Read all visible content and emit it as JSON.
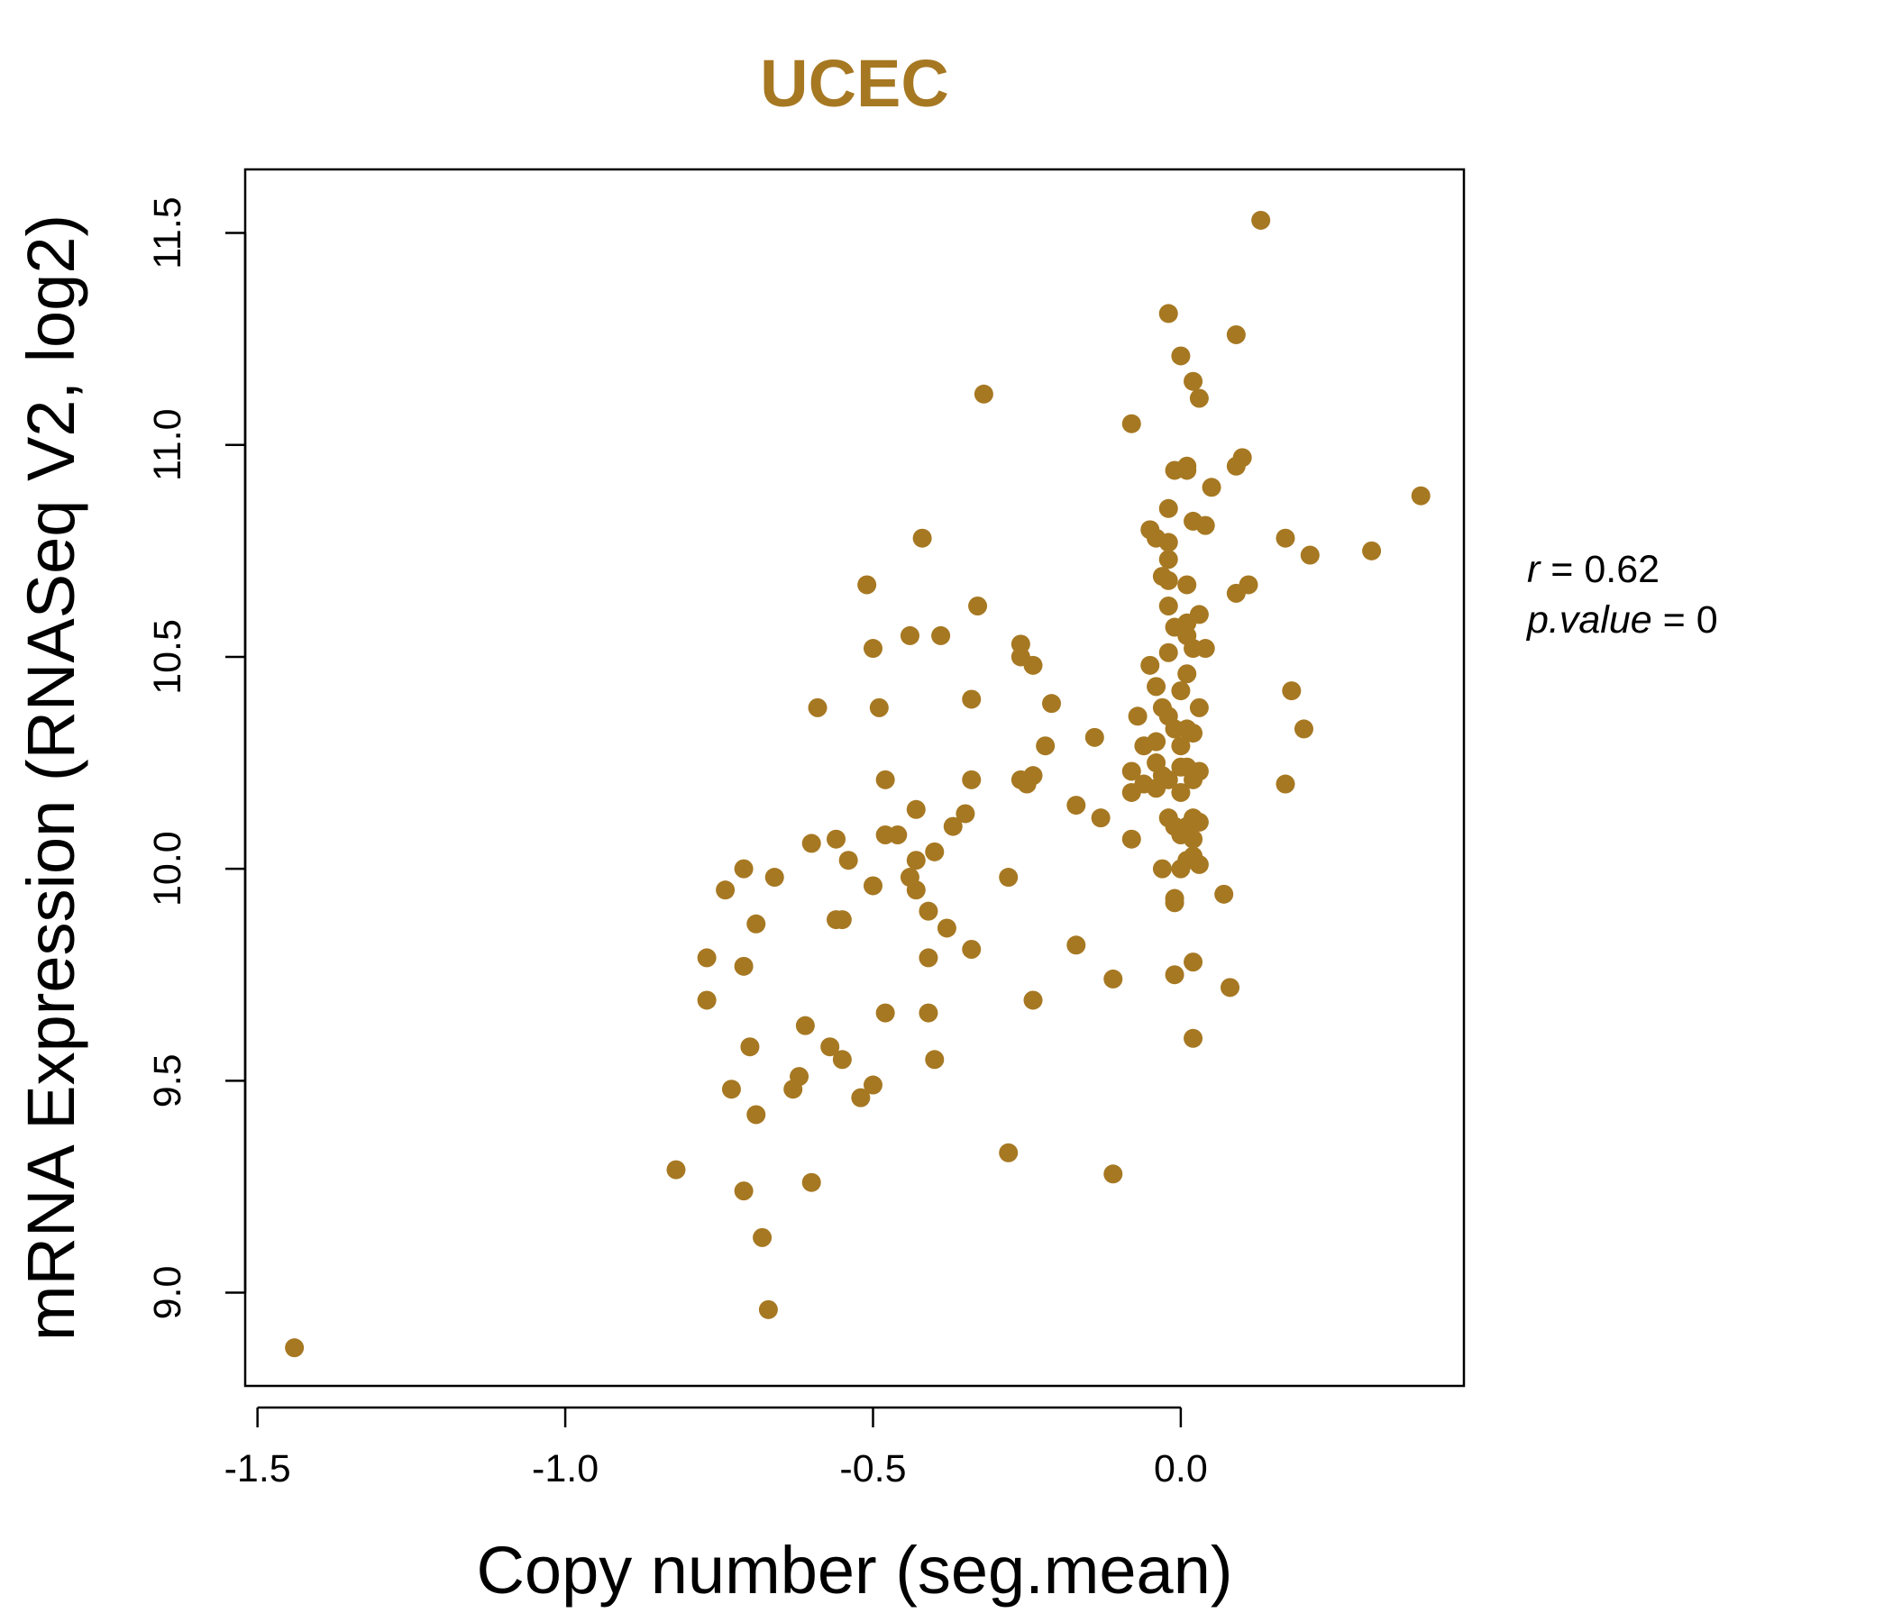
{
  "chart_data": {
    "type": "scatter",
    "title": "UCEC",
    "xlabel": "Copy number (seg.mean)",
    "ylabel": "mRNA Expression (RNASeq V2, log2)",
    "xlim": [
      -1.52,
      0.46
    ],
    "ylim": [
      8.78,
      11.65
    ],
    "x_ticks": [
      -1.5,
      -1.0,
      -0.5,
      0.0
    ],
    "x_tick_labels": [
      "-1.5",
      "-1.0",
      "-0.5",
      "0.0"
    ],
    "y_ticks": [
      9.0,
      9.5,
      10.0,
      10.5,
      11.0,
      11.5
    ],
    "y_tick_labels": [
      "9.0",
      "9.5",
      "10.0",
      "10.5",
      "11.0",
      "11.5"
    ],
    "grid": false,
    "point_color": "#A67822",
    "annotations": {
      "r_label": "r",
      "r_value": "0.62",
      "p_label": "p.value",
      "p_value": "0"
    },
    "points": [
      [
        -1.44,
        8.87
      ],
      [
        -0.82,
        9.29
      ],
      [
        -0.77,
        9.79
      ],
      [
        -0.77,
        9.69
      ],
      [
        -0.74,
        9.95
      ],
      [
        -0.73,
        9.48
      ],
      [
        -0.71,
        10.0
      ],
      [
        -0.71,
        9.77
      ],
      [
        -0.71,
        9.24
      ],
      [
        -0.7,
        9.58
      ],
      [
        -0.69,
        9.42
      ],
      [
        -0.69,
        9.87
      ],
      [
        -0.68,
        9.13
      ],
      [
        -0.67,
        8.96
      ],
      [
        -0.66,
        9.98
      ],
      [
        -0.63,
        9.48
      ],
      [
        -0.62,
        9.51
      ],
      [
        -0.61,
        9.63
      ],
      [
        -0.6,
        10.06
      ],
      [
        -0.6,
        9.26
      ],
      [
        -0.59,
        10.38
      ],
      [
        -0.57,
        9.58
      ],
      [
        -0.56,
        10.07
      ],
      [
        -0.56,
        9.88
      ],
      [
        -0.55,
        9.88
      ],
      [
        -0.55,
        9.55
      ],
      [
        -0.54,
        10.02
      ],
      [
        -0.52,
        9.46
      ],
      [
        -0.51,
        10.67
      ],
      [
        -0.5,
        9.49
      ],
      [
        -0.5,
        10.52
      ],
      [
        -0.5,
        9.96
      ],
      [
        -0.49,
        10.38
      ],
      [
        -0.48,
        10.21
      ],
      [
        -0.48,
        10.08
      ],
      [
        -0.48,
        9.66
      ],
      [
        -0.46,
        10.08
      ],
      [
        -0.44,
        10.55
      ],
      [
        -0.44,
        9.98
      ],
      [
        -0.43,
        10.14
      ],
      [
        -0.43,
        10.02
      ],
      [
        -0.43,
        9.95
      ],
      [
        -0.42,
        10.78
      ],
      [
        -0.41,
        9.9
      ],
      [
        -0.41,
        9.79
      ],
      [
        -0.41,
        9.66
      ],
      [
        -0.4,
        9.55
      ],
      [
        -0.4,
        10.04
      ],
      [
        -0.39,
        10.55
      ],
      [
        -0.38,
        9.86
      ],
      [
        -0.37,
        10.1
      ],
      [
        -0.35,
        10.13
      ],
      [
        -0.34,
        10.4
      ],
      [
        -0.34,
        10.21
      ],
      [
        -0.34,
        9.81
      ],
      [
        -0.33,
        10.62
      ],
      [
        -0.32,
        11.12
      ],
      [
        -0.28,
        9.98
      ],
      [
        -0.28,
        9.33
      ],
      [
        -0.26,
        10.53
      ],
      [
        -0.26,
        10.5
      ],
      [
        -0.26,
        10.21
      ],
      [
        -0.25,
        10.2
      ],
      [
        -0.24,
        10.22
      ],
      [
        -0.24,
        10.48
      ],
      [
        -0.24,
        9.69
      ],
      [
        -0.22,
        10.29
      ],
      [
        -0.21,
        10.39
      ],
      [
        -0.17,
        10.15
      ],
      [
        -0.17,
        9.82
      ],
      [
        -0.14,
        10.31
      ],
      [
        -0.13,
        10.12
      ],
      [
        -0.11,
        9.74
      ],
      [
        -0.11,
        9.28
      ],
      [
        -0.08,
        11.05
      ],
      [
        -0.08,
        10.23
      ],
      [
        -0.08,
        10.18
      ],
      [
        -0.08,
        10.07
      ],
      [
        -0.07,
        10.36
      ],
      [
        -0.06,
        10.2
      ],
      [
        -0.06,
        10.29
      ],
      [
        -0.05,
        10.48
      ],
      [
        -0.05,
        10.8
      ],
      [
        -0.04,
        10.78
      ],
      [
        -0.04,
        10.43
      ],
      [
        -0.04,
        10.3
      ],
      [
        -0.04,
        10.25
      ],
      [
        -0.04,
        10.19
      ],
      [
        -0.03,
        10.69
      ],
      [
        -0.03,
        10.38
      ],
      [
        -0.03,
        10.22
      ],
      [
        -0.03,
        10.0
      ],
      [
        -0.02,
        11.31
      ],
      [
        -0.02,
        10.85
      ],
      [
        -0.02,
        10.77
      ],
      [
        -0.02,
        10.73
      ],
      [
        -0.02,
        10.68
      ],
      [
        -0.02,
        10.62
      ],
      [
        -0.02,
        10.51
      ],
      [
        -0.02,
        10.36
      ],
      [
        -0.02,
        10.12
      ],
      [
        -0.02,
        10.21
      ],
      [
        -0.01,
        9.75
      ],
      [
        -0.01,
        10.57
      ],
      [
        -0.01,
        10.33
      ],
      [
        -0.01,
        10.1
      ],
      [
        -0.01,
        9.92
      ],
      [
        -0.01,
        9.93
      ],
      [
        -0.01,
        10.94
      ],
      [
        0.0,
        11.21
      ],
      [
        0.0,
        10.0
      ],
      [
        0.0,
        10.29
      ],
      [
        0.0,
        10.42
      ],
      [
        0.0,
        10.24
      ],
      [
        0.0,
        10.18
      ],
      [
        0.0,
        10.08
      ],
      [
        0.01,
        10.94
      ],
      [
        0.01,
        10.67
      ],
      [
        0.01,
        10.58
      ],
      [
        0.01,
        10.46
      ],
      [
        0.01,
        10.33
      ],
      [
        0.01,
        10.24
      ],
      [
        0.01,
        10.1
      ],
      [
        0.01,
        10.02
      ],
      [
        0.01,
        10.95
      ],
      [
        0.01,
        10.55
      ],
      [
        0.02,
        10.82
      ],
      [
        0.02,
        9.78
      ],
      [
        0.02,
        9.6
      ],
      [
        0.02,
        10.52
      ],
      [
        0.02,
        10.32
      ],
      [
        0.02,
        10.21
      ],
      [
        0.02,
        10.07
      ],
      [
        0.02,
        10.03
      ],
      [
        0.02,
        11.15
      ],
      [
        0.02,
        10.12
      ],
      [
        0.03,
        11.11
      ],
      [
        0.03,
        10.6
      ],
      [
        0.03,
        10.38
      ],
      [
        0.03,
        10.23
      ],
      [
        0.03,
        10.11
      ],
      [
        0.03,
        10.01
      ],
      [
        0.04,
        10.81
      ],
      [
        0.04,
        10.52
      ],
      [
        0.05,
        10.9
      ],
      [
        0.07,
        9.94
      ],
      [
        0.08,
        9.72
      ],
      [
        0.09,
        11.26
      ],
      [
        0.09,
        10.95
      ],
      [
        0.09,
        10.65
      ],
      [
        0.1,
        10.97
      ],
      [
        0.11,
        10.67
      ],
      [
        0.13,
        11.53
      ],
      [
        0.17,
        10.78
      ],
      [
        0.17,
        10.2
      ],
      [
        0.18,
        10.42
      ],
      [
        0.2,
        10.33
      ],
      [
        0.21,
        10.74
      ],
      [
        0.31,
        10.75
      ],
      [
        0.39,
        10.88
      ]
    ]
  }
}
